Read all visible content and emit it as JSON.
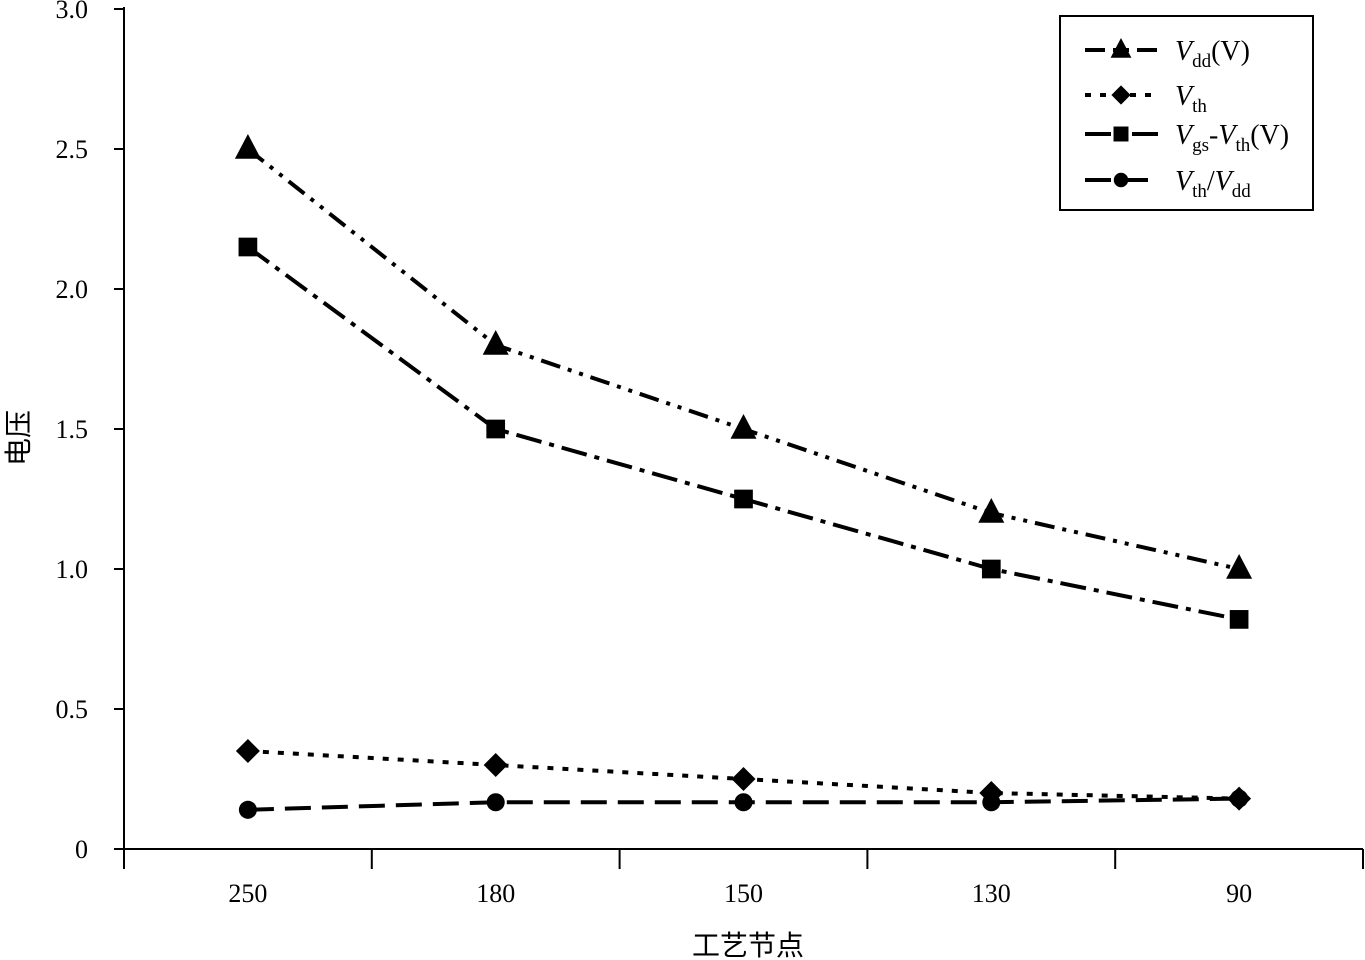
{
  "chart_data": {
    "type": "line",
    "categories": [
      "250",
      "180",
      "150",
      "130",
      "90"
    ],
    "xlabel": "工艺节点",
    "ylabel": "电压",
    "ylim": [
      0,
      3.0
    ],
    "yticks": [
      "0",
      "0.5",
      "1.0",
      "1.5",
      "2.0",
      "2.5",
      "3.0"
    ],
    "grid": false,
    "legend_position": "top-right",
    "series": [
      {
        "key": "vdd",
        "legend": {
          "v": "V",
          "sub": "dd",
          "suffix": "(V)"
        },
        "marker": "triangle",
        "dash": "dash-dot-dot",
        "values": [
          2.5,
          1.8,
          1.5,
          1.2,
          1.0
        ]
      },
      {
        "key": "vth",
        "legend": {
          "v": "V",
          "sub": "th",
          "suffix": ""
        },
        "marker": "diamond",
        "dash": "dotted",
        "values": [
          0.35,
          0.3,
          0.25,
          0.2,
          0.18
        ]
      },
      {
        "key": "vgs_vth",
        "legend": {
          "v": "V",
          "sub": "gs",
          "mid": "-",
          "v2": "V",
          "sub2": "th",
          "suffix": "(V)"
        },
        "marker": "square",
        "dash": "long-dash-dot",
        "values": [
          2.15,
          1.5,
          1.25,
          1.0,
          0.82
        ]
      },
      {
        "key": "vth_vdd",
        "legend": {
          "v": "V",
          "sub": "th",
          "mid": "/",
          "v2": "V",
          "sub2": "dd",
          "suffix": ""
        },
        "marker": "circle",
        "dash": "long-dash",
        "values": [
          0.14,
          0.167,
          0.167,
          0.167,
          0.18
        ]
      }
    ]
  }
}
